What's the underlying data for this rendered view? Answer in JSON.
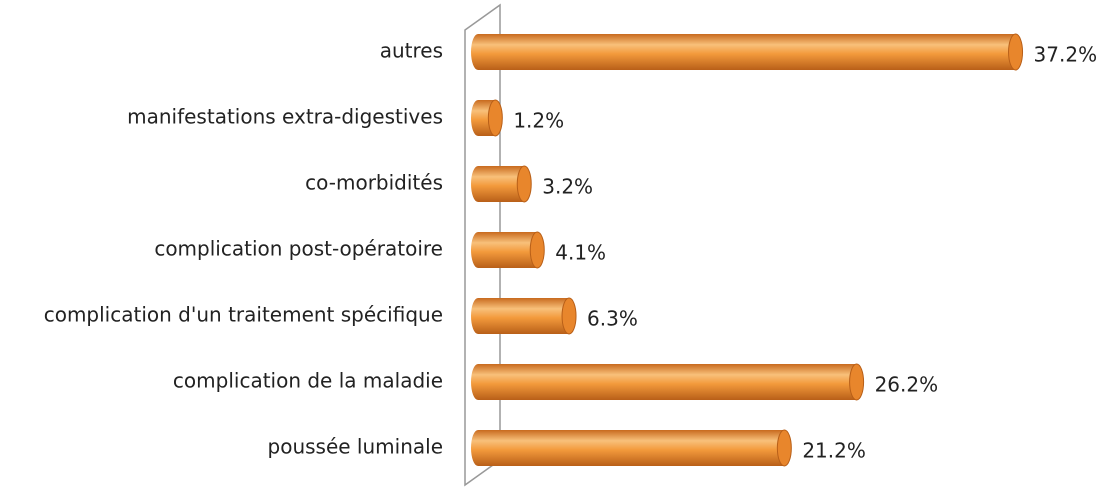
{
  "chart_data": {
    "type": "bar",
    "orientation": "horizontal",
    "categories": [
      "autres",
      "manifestations extra-digestives",
      "co-morbidités",
      "complication post-opératoire",
      "complication d'un traitement spécifique",
      "complication de la maladie",
      "poussée luminale"
    ],
    "values": [
      37.2,
      1.2,
      3.2,
      4.1,
      6.3,
      26.2,
      21.2
    ],
    "value_labels": [
      "37.2%",
      "1.2%",
      "3.2%",
      "4.1%",
      "6.3%",
      "26.2%",
      "21.2%"
    ],
    "color": "#f39a3c"
  }
}
